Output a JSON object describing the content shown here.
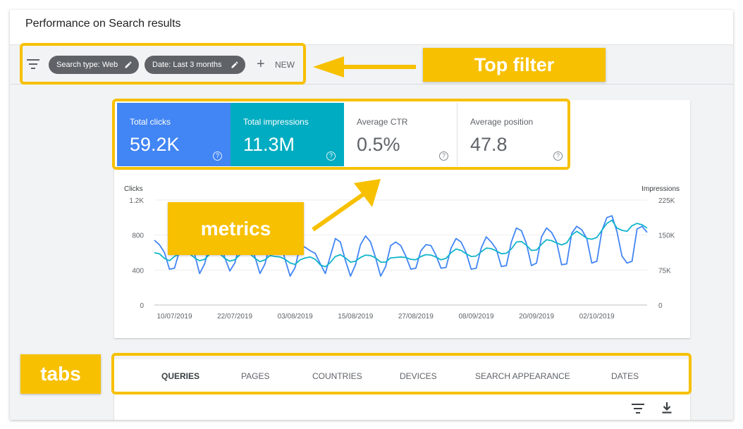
{
  "page": {
    "title": "Performance on Search results"
  },
  "filters": {
    "chips": [
      {
        "label": "Search type: Web"
      },
      {
        "label": "Date: Last 3 months"
      }
    ],
    "new_label": "NEW"
  },
  "metrics": [
    {
      "label": "Total clicks",
      "value": "59.2K"
    },
    {
      "label": "Total impressions",
      "value": "11.3M"
    },
    {
      "label": "Average CTR",
      "value": "0.5%"
    },
    {
      "label": "Average position",
      "value": "47.8"
    }
  ],
  "chart_data": {
    "type": "line",
    "left_axis_label": "Clicks",
    "right_axis_label": "Impressions",
    "left_ticks": [
      "1.2K",
      "800",
      "400",
      "0"
    ],
    "right_ticks": [
      "225K",
      "150K",
      "75K",
      "0"
    ],
    "left_ylim": [
      0,
      1200
    ],
    "right_ylim": [
      0,
      225000
    ],
    "x_tick_labels": [
      "10/07/2019",
      "22/07/2019",
      "03/08/2019",
      "15/08/2019",
      "27/08/2019",
      "08/09/2019",
      "20/09/2019",
      "02/10/2019"
    ],
    "x_start_date": "2019-07-06",
    "grid": true,
    "series": [
      {
        "axis": "left",
        "color": "#4285f4",
        "values": [
          740,
          690,
          600,
          410,
          420,
          620,
          780,
          720,
          580,
          360,
          470,
          700,
          780,
          720,
          540,
          390,
          480,
          700,
          770,
          720,
          550,
          360,
          470,
          700,
          760,
          720,
          520,
          330,
          430,
          680,
          660,
          620,
          590,
          470,
          360,
          560,
          760,
          720,
          510,
          330,
          460,
          690,
          790,
          720,
          540,
          330,
          440,
          680,
          720,
          680,
          560,
          410,
          420,
          620,
          690,
          680,
          570,
          420,
          430,
          650,
          760,
          720,
          600,
          410,
          420,
          650,
          780,
          720,
          640,
          440,
          450,
          720,
          880,
          850,
          700,
          450,
          480,
          780,
          880,
          830,
          720,
          460,
          470,
          820,
          900,
          860,
          760,
          480,
          500,
          850,
          1000,
          1020,
          840,
          560,
          480,
          500,
          870,
          900,
          830
        ]
      },
      {
        "axis": "right",
        "color": "#12b5cb",
        "values": [
          112000,
          110000,
          100000,
          95000,
          104000,
          110000,
          113000,
          110000,
          101000,
          95000,
          98000,
          109000,
          112000,
          110000,
          100000,
          94000,
          97000,
          108000,
          112000,
          110000,
          100000,
          93000,
          97000,
          106000,
          104000,
          103000,
          98000,
          90000,
          87000,
          97000,
          101000,
          103000,
          98000,
          86000,
          82000,
          91000,
          104000,
          108000,
          101000,
          92000,
          94000,
          102000,
          107000,
          106000,
          101000,
          92000,
          92000,
          101000,
          102000,
          103000,
          102000,
          98000,
          97000,
          104000,
          108000,
          107000,
          103000,
          97000,
          100000,
          112000,
          120000,
          117000,
          110000,
          104000,
          105000,
          114000,
          122000,
          121000,
          116000,
          110000,
          111000,
          120000,
          135000,
          136000,
          128000,
          117000,
          118000,
          130000,
          140000,
          138000,
          133000,
          129000,
          133000,
          150000,
          158000,
          151000,
          143000,
          141000,
          145000,
          160000,
          175000,
          182000,
          165000,
          160000,
          158000,
          170000,
          175000,
          172000,
          165000
        ]
      }
    ]
  },
  "tabs": [
    {
      "label": "QUERIES"
    },
    {
      "label": "PAGES"
    },
    {
      "label": "COUNTRIES"
    },
    {
      "label": "DEVICES"
    },
    {
      "label": "SEARCH APPEARANCE"
    },
    {
      "label": "DATES"
    }
  ],
  "annotations": {
    "top_filter": "Top filter",
    "metrics": "metrics",
    "tabs": "tabs",
    "color": "#f7c000"
  },
  "icons": [
    "filter-icon",
    "pencil-icon",
    "plus-icon",
    "help-icon",
    "download-icon"
  ],
  "colors": {
    "clicks": "#4285f4",
    "impressions": "#00acc1",
    "chip": "#5f6368"
  }
}
